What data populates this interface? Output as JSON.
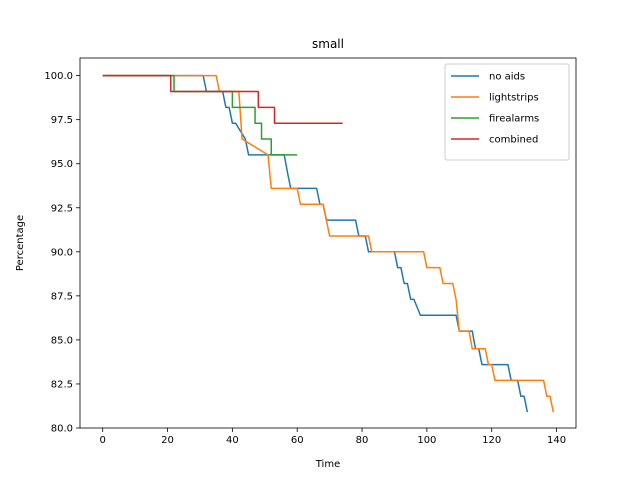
{
  "chart_data": {
    "type": "line",
    "title": "small",
    "xlabel": "Time",
    "ylabel": "Percentage",
    "xlim": [
      -7,
      146
    ],
    "ylim": [
      80,
      101
    ],
    "xticks": [
      0,
      20,
      40,
      60,
      80,
      100,
      120,
      140
    ],
    "xtick_labels": [
      "0",
      "20",
      "40",
      "60",
      "80",
      "100",
      "120",
      "140"
    ],
    "yticks": [
      80.0,
      82.5,
      85.0,
      87.5,
      90.0,
      92.5,
      95.0,
      97.5,
      100.0
    ],
    "ytick_labels": [
      "80.0",
      "82.5",
      "85.0",
      "87.5",
      "90.0",
      "92.5",
      "95.0",
      "97.5",
      "100.0"
    ],
    "grid": false,
    "legend_position": "top-right",
    "series": [
      {
        "name": "no aids",
        "color": "#1f77b4",
        "x": [
          0,
          31,
          32,
          37,
          38,
          39,
          40,
          41,
          44,
          45,
          46,
          47,
          48,
          49,
          50,
          56,
          57,
          58,
          66,
          67,
          68,
          69,
          78,
          79,
          80,
          81,
          82,
          83,
          84,
          89,
          90,
          91,
          92,
          93,
          94,
          95,
          96,
          98,
          99,
          109,
          110,
          114,
          115,
          116,
          117,
          118,
          125,
          126,
          127,
          128,
          129,
          130,
          131
        ],
        "y": [
          100,
          100,
          99.1,
          99.1,
          98.2,
          98.2,
          97.3,
          97.3,
          96.4,
          95.5,
          95.5,
          95.5,
          95.5,
          95.5,
          95.5,
          95.5,
          94.5,
          93.6,
          93.6,
          92.7,
          92.7,
          91.8,
          91.8,
          90.9,
          90.9,
          90.9,
          90.0,
          90.0,
          90.0,
          90.0,
          90.0,
          89.1,
          89.1,
          88.2,
          88.2,
          87.3,
          87.3,
          86.4,
          86.4,
          86.4,
          85.5,
          85.5,
          84.5,
          84.5,
          83.6,
          83.6,
          83.6,
          82.7,
          82.7,
          82.7,
          81.8,
          81.8,
          80.9
        ]
      },
      {
        "name": "lightstrips",
        "color": "#ff7f0e",
        "x": [
          0,
          35,
          36,
          42,
          43,
          51,
          52,
          60,
          61,
          68,
          69,
          70,
          82,
          83,
          99,
          100,
          104,
          105,
          108,
          109,
          110,
          113,
          114,
          118,
          119,
          120,
          121,
          136,
          137,
          138,
          139
        ],
        "y": [
          100,
          100,
          99.1,
          99.1,
          96.4,
          95.5,
          93.6,
          93.6,
          92.7,
          92.7,
          91.8,
          90.9,
          90.9,
          90.0,
          90.0,
          89.1,
          89.1,
          88.2,
          88.2,
          87.3,
          85.5,
          85.5,
          84.5,
          84.5,
          83.6,
          83.6,
          82.7,
          82.7,
          81.8,
          81.8,
          80.9
        ]
      },
      {
        "name": "firealarms",
        "color": "#2ca02c",
        "x": [
          0,
          21,
          22,
          39,
          40,
          46,
          47,
          48,
          49,
          51,
          52,
          60
        ],
        "y": [
          100,
          100,
          99.1,
          99.1,
          98.2,
          98.2,
          97.3,
          97.3,
          96.4,
          96.4,
          95.5,
          95.5
        ],
        "step": true
      },
      {
        "name": "combined",
        "color": "#d62728",
        "x": [
          0,
          20,
          21,
          47,
          48,
          52,
          53,
          74
        ],
        "y": [
          100,
          100,
          99.1,
          99.1,
          98.2,
          98.2,
          97.3,
          97.3
        ],
        "step": true
      }
    ]
  }
}
